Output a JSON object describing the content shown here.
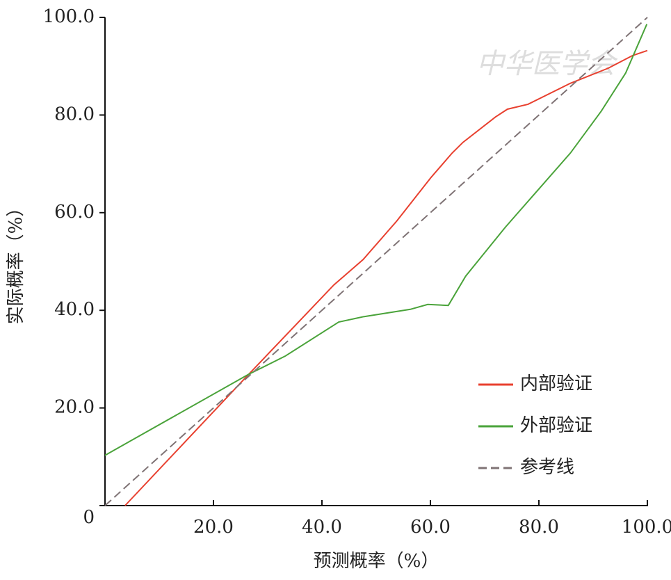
{
  "chart_data": {
    "type": "line",
    "xlabel": "预测概率（%）",
    "ylabel": "实际概率（%）",
    "watermark": "中华医学会",
    "xlim": [
      0,
      100
    ],
    "ylim": [
      0,
      100
    ],
    "xticks": [
      {
        "value": 20,
        "label": "20.0"
      },
      {
        "value": 40,
        "label": "40.0"
      },
      {
        "value": 60,
        "label": "60.0"
      },
      {
        "value": 80,
        "label": "80.0"
      },
      {
        "value": 100,
        "label": "100.0"
      }
    ],
    "yticks": [
      0,
      {
        "value": 20,
        "label": "20.0"
      },
      {
        "value": 40,
        "label": "40.0"
      },
      {
        "value": 60,
        "label": "60.0"
      },
      {
        "value": 80,
        "label": "80.0"
      },
      {
        "value": 100,
        "label": "100.0"
      }
    ],
    "legend": "lower right",
    "series": [
      {
        "name": "内部验证",
        "color": "#e8402f",
        "dashed": false,
        "x": [
          3.7,
          26.5,
          42.2,
          47.6,
          53.8,
          60.1,
          64,
          66,
          72,
          74.2,
          78,
          85.8,
          92.8,
          97.3,
          100
        ],
        "values": [
          0,
          26.9,
          45.2,
          50.4,
          58.3,
          67.2,
          72.2,
          74.4,
          79.6,
          81.2,
          82.2,
          86.5,
          89.6,
          92.2,
          93.2
        ]
      },
      {
        "name": "外部验证",
        "color": "#4aa33a",
        "dashed": false,
        "x": [
          0,
          26.5,
          33.2,
          43.1,
          47.7,
          56.3,
          59.5,
          63.3,
          66.5,
          73.8,
          85.8,
          91.5,
          96,
          99.9
        ],
        "values": [
          10.3,
          26.9,
          30.6,
          37.6,
          38.7,
          40.2,
          41.2,
          41,
          47,
          57,
          72.2,
          80.8,
          88.6,
          98.6
        ]
      },
      {
        "name": "参考线",
        "color": "#7f7375",
        "dashed": true,
        "x": [
          0,
          100
        ],
        "values": [
          0,
          100
        ]
      }
    ]
  }
}
